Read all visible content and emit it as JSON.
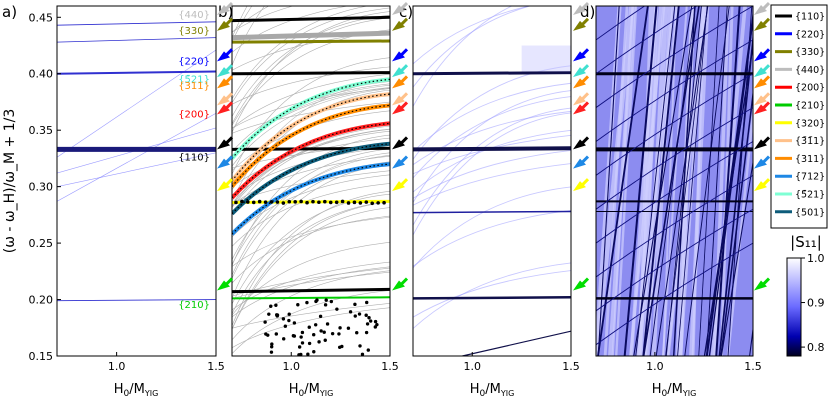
{
  "figure": {
    "ylabel": "(ω - ω_H)/ω_M + 1/3",
    "xlabel": "H₀/M_YIG",
    "xticks": [
      "1.0",
      "1.5"
    ],
    "yticks": [
      "0.15",
      "0.20",
      "0.25",
      "0.30",
      "0.35",
      "0.40",
      "0.45"
    ]
  },
  "chart_data": [
    {
      "panel": "a)",
      "type": "line",
      "xlabel": "H₀/M_YIG",
      "ylabel": "(ω - ω_H)/ω_M + 1/3",
      "xlim": [
        0.7,
        1.5
      ],
      "ylim": [
        0.15,
        0.46
      ],
      "mode_labels": [
        {
          "text": "{440}",
          "y": 0.452,
          "color": "#bdbdbd"
        },
        {
          "text": "{330}",
          "y": 0.438,
          "color": "#808000"
        },
        {
          "text": "{220}",
          "y": 0.411,
          "color": "#0000ff"
        },
        {
          "text": "{5̄21}",
          "y": 0.395,
          "color": "#40e0d0"
        },
        {
          "text": "{311}",
          "y": 0.389,
          "color": "#ff8c00"
        },
        {
          "text": "{200}",
          "y": 0.364,
          "color": "#ff0000"
        },
        {
          "text": "{110}",
          "y": 0.326,
          "color": "#000000"
        },
        {
          "text": "{210}",
          "y": 0.195,
          "color": "#00cc00"
        }
      ],
      "modes": [
        {
          "name": "{110}",
          "y": [
            0.333,
            0.333
          ]
        },
        {
          "name": "{220}",
          "y": [
            0.4,
            0.402
          ]
        },
        {
          "name": "{330}",
          "y": [
            0.428,
            0.432
          ]
        },
        {
          "name": "{440}",
          "y": [
            0.443,
            0.446
          ]
        },
        {
          "name": "{210}",
          "y": [
            0.199,
            0.2
          ]
        }
      ]
    },
    {
      "panel": "b)",
      "type": "line",
      "xlim": [
        0.7,
        1.5
      ],
      "ylim": [
        0.15,
        0.46
      ],
      "legend": [
        "{110}",
        "{220}",
        "{330}",
        "{440}",
        "{200}",
        "{210}",
        "{320}",
        "{3̄1̄1}",
        "{311}",
        "{712}",
        "{5̄21}",
        "{501}"
      ],
      "legend_colors": [
        "#000000",
        "#0000ff",
        "#808000",
        "#bdbdbd",
        "#ff0000",
        "#00cc00",
        "#ffff00",
        "#ffc18a",
        "#ff8c00",
        "#1e88e5",
        "#7fffd4",
        "#0d5c7a"
      ],
      "legend_placement": "right"
    },
    {
      "panel": "c)",
      "type": "heatmap",
      "xlim": [
        0.7,
        1.5
      ],
      "ylim": [
        0.15,
        0.46
      ]
    },
    {
      "panel": "d)",
      "type": "heatmap",
      "xlim": [
        0.7,
        1.5
      ],
      "ylim": [
        0.15,
        0.46
      ],
      "colorbar_title": "|S₁₁|",
      "colorbar_ticks": [
        "1.0",
        "0.9",
        "0.8"
      ],
      "colorbar_range": [
        0.78,
        1.0
      ]
    }
  ],
  "arrows": [
    {
      "mode": "{440}",
      "y": 0.452,
      "color": "#bdbdbd"
    },
    {
      "mode": "{330}",
      "y": 0.438,
      "color": "#808000"
    },
    {
      "mode": "{220}",
      "y": 0.411,
      "color": "#0000ff"
    },
    {
      "mode": "{5̄21}",
      "y": 0.397,
      "color": "#40e0d0"
    },
    {
      "mode": "{311}",
      "y": 0.387,
      "color": "#ff8c00"
    },
    {
      "mode": "{3̄1̄1}",
      "y": 0.372,
      "color": "#ffc18a"
    },
    {
      "mode": "{200}",
      "y": 0.364,
      "color": "#ff2020"
    },
    {
      "mode": "{110}",
      "y": 0.333,
      "color": "#000000"
    },
    {
      "mode": "{712}",
      "y": 0.316,
      "color": "#1e88e5"
    },
    {
      "mode": "{320}",
      "y": 0.296,
      "color": "#ffff00"
    },
    {
      "mode": "{210}",
      "y": 0.208,
      "color": "#00dd00"
    }
  ]
}
